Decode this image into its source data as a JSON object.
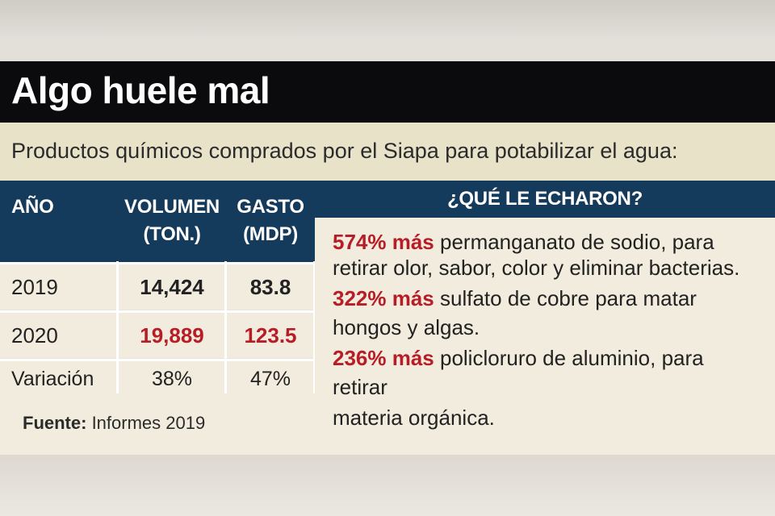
{
  "title": "Algo huele mal",
  "subtitle": "Productos químicos comprados por el Siapa para potabilizar el agua:",
  "table": {
    "headers": {
      "year": "AÑO",
      "volume_line1": "VOLUMEN",
      "volume_line2": "(TON.)",
      "spend_line1": "GASTO",
      "spend_line2": "(MDP)"
    },
    "rows": [
      {
        "label": "2019",
        "volume": "14,424",
        "spend": "83.8"
      },
      {
        "label": "2020",
        "volume": "19,889",
        "spend": "123.5"
      },
      {
        "label": "Variación",
        "volume": "38%",
        "spend": "47%"
      }
    ]
  },
  "source": {
    "label": "Fuente:",
    "text": " Informes 2019"
  },
  "panel": {
    "heading": "¿QUÉ LE ECHARON?",
    "items": [
      {
        "highlight": "574% más",
        "line1": " permanganato de sodio, para",
        "line2": "retirar olor, sabor, color y eliminar bacterias."
      },
      {
        "highlight": "322% más",
        "line1": " sulfato de cobre para matar",
        "line2": "hongos y algas."
      },
      {
        "highlight": "236% más",
        "line1": " policloruro de aluminio, para",
        "line2": "retirar",
        "line3": "materia orgánica."
      }
    ]
  },
  "colors": {
    "navy": "#143a5c",
    "black_bar": "#0b0b0d",
    "highlight_red": "#b81d27",
    "cream": "#f1ecdd",
    "subtitle_band": "#e8e2c8"
  }
}
